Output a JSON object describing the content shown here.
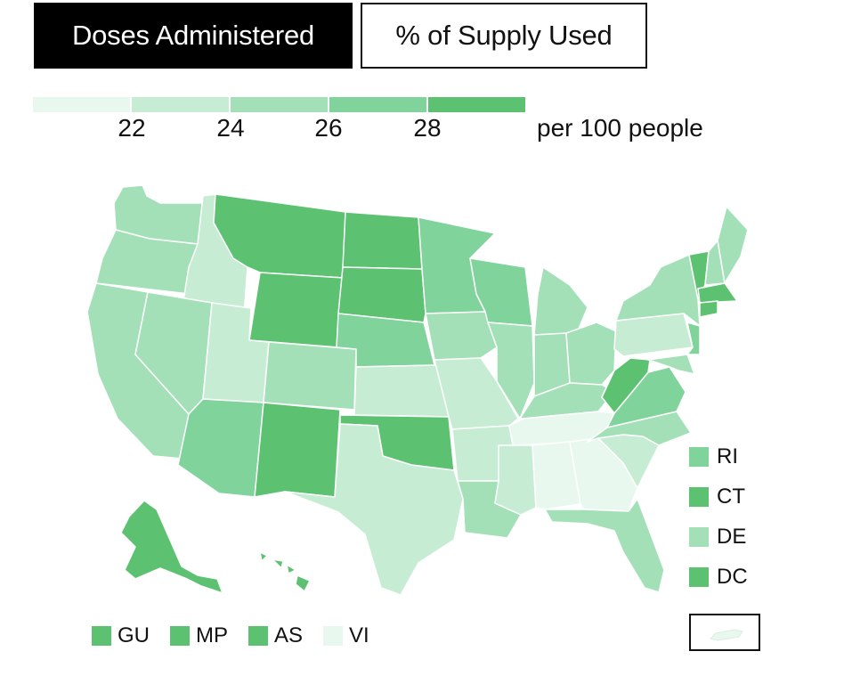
{
  "tabs": [
    {
      "label": "Doses Administered",
      "active": true
    },
    {
      "label": "% of Supply Used",
      "active": false
    }
  ],
  "scale": {
    "colors": [
      "#e9f8ee",
      "#c6ecd3",
      "#a3e0b8",
      "#7fd39b",
      "#5cc272"
    ],
    "ticks": [
      "22",
      "24",
      "26",
      "28"
    ],
    "unit": "per 100 people"
  },
  "side_legend": [
    {
      "label": "RI",
      "color": "#7fd39b"
    },
    {
      "label": "CT",
      "color": "#5cc272"
    },
    {
      "label": "DE",
      "color": "#a3e0b8"
    },
    {
      "label": "DC",
      "color": "#5cc272"
    }
  ],
  "bottom_legend": [
    {
      "label": "GU",
      "color": "#5cc272"
    },
    {
      "label": "MP",
      "color": "#5cc272"
    },
    {
      "label": "AS",
      "color": "#5cc272"
    },
    {
      "label": "VI",
      "color": "#e9f8ee"
    }
  ],
  "pr_color": "#e9f8ee"
}
